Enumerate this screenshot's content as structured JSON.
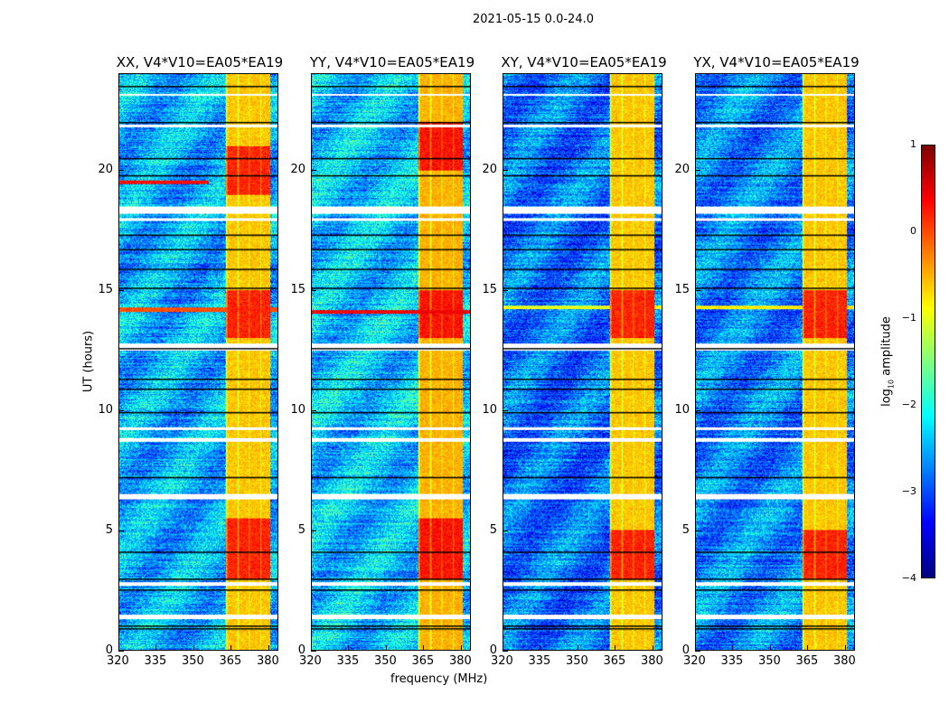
{
  "chart_data": {
    "type": "heatmap",
    "title": "2021-05-15 0.0-24.0",
    "xlabel": "frequency (MHz)",
    "ylabel": "UT (hours)",
    "xlim": [
      320,
      384
    ],
    "ylim": [
      0,
      24
    ],
    "xticks": [
      "320",
      "335",
      "350",
      "365",
      "380"
    ],
    "xtick_values": [
      320,
      335,
      350,
      365,
      380
    ],
    "yticks": [
      "0",
      "5",
      "10",
      "15",
      "20"
    ],
    "ytick_values": [
      0,
      5,
      10,
      15,
      20
    ],
    "colormap": "jet",
    "colorbar": {
      "label_prefix": "log",
      "label_sub": "10",
      "label_suffix": " amplitude",
      "range": [
        -4,
        1
      ],
      "ticks": [
        "1",
        "0",
        "−1",
        "−2",
        "−3",
        "−4"
      ],
      "tick_values": [
        1,
        0,
        -1,
        -2,
        -3,
        -4
      ]
    },
    "panels": [
      {
        "title": "XX, V4*V10=EA05*EA19",
        "background_level": -2.5,
        "band_level": -0.6,
        "bright_hours": [
          [
            13,
            15
          ],
          [
            3,
            5.5
          ],
          [
            19,
            21
          ]
        ],
        "stripes": [
          {
            "hour": 14.2,
            "to_mhz": 384,
            "level": 0
          },
          {
            "hour": 19.5,
            "to_mhz": 356,
            "level": 0.3
          }
        ]
      },
      {
        "title": "YY, V4*V10=EA05*EA19",
        "background_level": -2.4,
        "band_level": -0.5,
        "bright_hours": [
          [
            13,
            15
          ],
          [
            3,
            5.5
          ],
          [
            20,
            22
          ]
        ],
        "stripes": [
          {
            "hour": 14.1,
            "to_mhz": 384,
            "level": 0.4
          }
        ]
      },
      {
        "title": "XY, V4*V10=EA05*EA19",
        "background_level": -2.8,
        "band_level": -0.6,
        "bright_hours": [
          [
            13,
            15
          ],
          [
            3,
            5
          ]
        ],
        "stripes": [
          {
            "hour": 14.3,
            "to_mhz": 384,
            "level": -1
          }
        ]
      },
      {
        "title": "YX, V4*V10=EA05*EA19",
        "background_level": -2.7,
        "band_level": -0.6,
        "bright_hours": [
          [
            13,
            15
          ],
          [
            3,
            5
          ]
        ],
        "stripes": [
          {
            "hour": 14.3,
            "to_mhz": 384,
            "level": -0.8
          }
        ]
      }
    ],
    "band_mhz": [
      363,
      381
    ],
    "flag_gaps_hours": [
      [
        1.3,
        1.5
      ],
      [
        2.7,
        2.85
      ],
      [
        6.3,
        6.5
      ],
      [
        8.7,
        8.85
      ],
      [
        9.2,
        9.3
      ],
      [
        12.5,
        12.8
      ],
      [
        17.9,
        18.0
      ],
      [
        18.2,
        18.5
      ],
      [
        21.8,
        21.9
      ],
      [
        23.1,
        23.2
      ]
    ],
    "black_lines_hours": [
      0.9,
      1.0,
      2.5,
      2.95,
      4.1,
      7.2,
      9.9,
      10.9,
      11.3,
      12.6,
      15.1,
      15.9,
      16.7,
      17.3,
      19.8,
      20.5,
      22.0,
      23.5
    ]
  }
}
